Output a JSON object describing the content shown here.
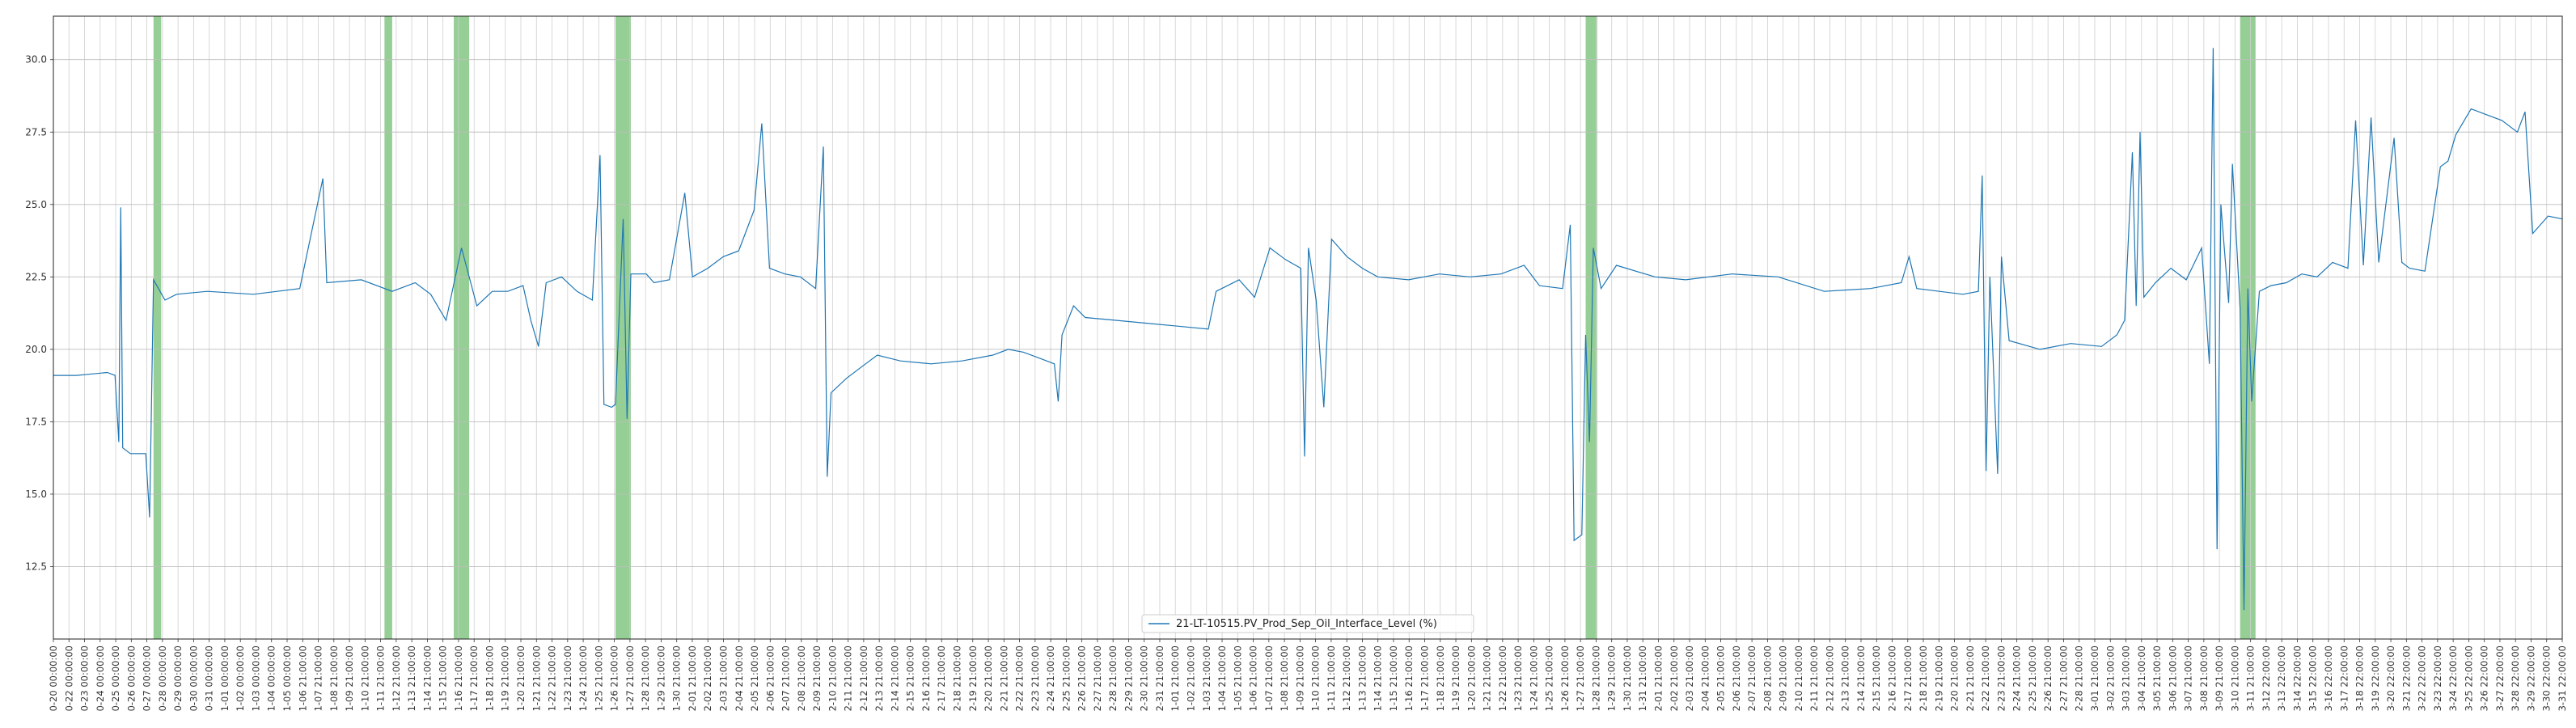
{
  "chart_data": {
    "type": "line",
    "title": "",
    "xlabel": "",
    "ylabel": "",
    "ylim": [
      10,
      31.5
    ],
    "yticks": [
      12.5,
      15.0,
      17.5,
      20.0,
      22.5,
      25.0,
      27.5,
      30.0
    ],
    "grid": true,
    "legend_placement": "bottom-center",
    "line_color": "#1f77b4",
    "highlight_color": "#2ca02c",
    "x_start": "2024-10-20 00:00:00",
    "x_end": "2025-03-31 22:00:00",
    "x_ticks_labels": [
      "0-20 00:00:00",
      "0-22 00:00:00",
      "0-23 00:00:00",
      "0-24 00:00:00",
      "0-25 00:00:00",
      "0-26 00:00:00",
      "0-27 00:00:00",
      "0-28 00:00:00",
      "0-29 00:00:00",
      "0-30 00:00:00",
      "0-31 00:00:00",
      "1-01 00:00:00",
      "1-02 00:00:00",
      "1-03 00:00:00",
      "1-04 00:00:00",
      "1-05 00:00:00",
      "1-06 21:00:00",
      "1-07 21:00:00",
      "1-08 21:00:00",
      "1-09 21:00:00",
      "1-10 21:00:00",
      "1-11 21:00:00",
      "1-12 21:00:00",
      "1-13 21:00:00",
      "1-14 21:00:00",
      "1-15 21:00:00",
      "1-16 21:00:00",
      "1-17 21:00:00",
      "1-18 21:00:00",
      "1-19 21:00:00",
      "1-20 21:00:00",
      "1-21 21:00:00",
      "1-22 21:00:00",
      "1-23 21:00:00",
      "1-24 21:00:00",
      "1-25 21:00:00",
      "1-26 21:00:00",
      "1-27 21:00:00",
      "1-28 21:00:00",
      "1-29 21:00:00",
      "1-30 21:00:00",
      "2-01 21:00:00",
      "2-02 21:00:00",
      "2-03 21:00:00",
      "2-04 21:00:00",
      "2-05 21:00:00",
      "2-06 21:00:00",
      "2-07 21:00:00",
      "2-08 21:00:00",
      "2-09 21:00:00",
      "2-10 21:00:00",
      "2-11 21:00:00",
      "2-12 21:00:00",
      "2-13 21:00:00",
      "2-14 21:00:00",
      "2-15 21:00:00",
      "2-16 21:00:00",
      "2-17 21:00:00",
      "2-18 21:00:00",
      "2-19 21:00:00",
      "2-20 21:00:00",
      "2-21 21:00:00",
      "2-22 21:00:00",
      "2-23 21:00:00",
      "2-24 21:00:00",
      "2-25 21:00:00",
      "2-26 21:00:00",
      "2-27 21:00:00",
      "2-28 21:00:00",
      "2-29 21:00:00",
      "2-30 21:00:00",
      "2-31 21:00:00",
      "1-01 21:00:00",
      "1-02 21:00:00",
      "1-03 21:00:00",
      "1-04 21:00:00",
      "1-05 21:00:00",
      "1-06 21:00:00",
      "1-07 21:00:00",
      "1-08 21:00:00",
      "1-09 21:00:00",
      "1-10 21:00:00",
      "1-11 21:00:00",
      "1-12 21:00:00",
      "1-13 21:00:00",
      "1-14 21:00:00",
      "1-15 21:00:00",
      "1-16 21:00:00",
      "1-17 21:00:00",
      "1-18 21:00:00",
      "1-19 21:00:00",
      "1-20 21:00:00",
      "1-21 21:00:00",
      "1-22 21:00:00",
      "1-23 21:00:00",
      "1-24 21:00:00",
      "1-25 21:00:00",
      "1-26 21:00:00",
      "1-27 21:00:00",
      "1-28 21:00:00",
      "1-29 21:00:00",
      "1-30 21:00:00",
      "1-31 21:00:00",
      "2-01 21:00:00",
      "2-02 21:00:00",
      "2-03 21:00:00",
      "2-04 21:00:00",
      "2-05 21:00:00",
      "2-06 21:00:00",
      "2-07 21:00:00",
      "2-08 21:00:00",
      "2-09 21:00:00",
      "2-10 21:00:00",
      "2-11 21:00:00",
      "2-12 21:00:00",
      "2-13 21:00:00",
      "2-14 21:00:00",
      "2-15 21:00:00",
      "2-16 21:00:00",
      "2-17 21:00:00",
      "2-18 21:00:00",
      "2-19 21:00:00",
      "2-20 21:00:00",
      "2-21 21:00:00",
      "2-22 21:00:00",
      "2-23 21:00:00",
      "2-24 21:00:00",
      "2-25 21:00:00",
      "2-26 21:00:00",
      "2-27 21:00:00",
      "2-28 21:00:00",
      "3-01 21:00:00",
      "3-02 21:00:00",
      "3-03 21:00:00",
      "3-04 21:00:00",
      "3-05 21:00:00",
      "3-06 21:00:00",
      "3-07 21:00:00",
      "3-08 21:00:00",
      "3-09 21:00:00",
      "3-10 21:00:00",
      "3-11 21:00:00",
      "3-12 22:00:00",
      "3-13 22:00:00",
      "3-14 22:00:00",
      "3-15 22:00:00",
      "3-16 22:00:00",
      "3-17 22:00:00",
      "3-18 22:00:00",
      "3-19 22:00:00",
      "3-20 22:00:00",
      "3-21 22:00:00",
      "3-22 22:00:00",
      "3-23 22:00:00",
      "3-24 22:00:00",
      "3-25 22:00:00",
      "3-26 22:00:00",
      "3-27 22:00:00",
      "3-28 22:00:00",
      "3-29 22:00:00",
      "3-30 22:00:00",
      "3-31 22:00:00"
    ],
    "highlight_spans": [
      {
        "start": "2024-10-26 12:00:00",
        "end": "2024-10-27 00:00:00"
      },
      {
        "start": "2024-11-10 12:00:00",
        "end": "2024-11-11 00:00:00"
      },
      {
        "start": "2024-11-15 00:00:00",
        "end": "2024-11-16 00:00:00"
      },
      {
        "start": "2024-11-25 12:00:00",
        "end": "2024-11-26 12:00:00"
      },
      {
        "start": "2025-01-27 12:00:00",
        "end": "2025-01-28 06:00:00"
      },
      {
        "start": "2025-03-11 00:00:00",
        "end": "2025-03-12 00:00:00"
      }
    ],
    "series": [
      {
        "name": "21-LT-10515.PV_Prod_Sep_Oil_Interface_Level (%)",
        "points": [
          [
            "2024-10-20 00:00:00",
            19.1
          ],
          [
            "2024-10-21 12:00:00",
            19.1
          ],
          [
            "2024-10-22 12:00:00",
            19.15
          ],
          [
            "2024-10-23 12:00:00",
            19.2
          ],
          [
            "2024-10-24 00:00:00",
            19.1
          ],
          [
            "2024-10-24 06:00:00",
            16.8
          ],
          [
            "2024-10-24 09:00:00",
            24.9
          ],
          [
            "2024-10-24 12:00:00",
            16.6
          ],
          [
            "2024-10-25 00:00:00",
            16.4
          ],
          [
            "2024-10-26 00:00:00",
            16.4
          ],
          [
            "2024-10-26 06:00:00",
            14.2
          ],
          [
            "2024-10-26 12:00:00",
            22.4
          ],
          [
            "2024-10-27 06:00:00",
            21.7
          ],
          [
            "2024-10-28 00:00:00",
            21.9
          ],
          [
            "2024-10-30 00:00:00",
            22.0
          ],
          [
            "2024-11-02 00:00:00",
            21.9
          ],
          [
            "2024-11-05 00:00:00",
            22.1
          ],
          [
            "2024-11-06 12:00:00",
            25.9
          ],
          [
            "2024-11-06 18:00:00",
            22.3
          ],
          [
            "2024-11-09 00:00:00",
            22.4
          ],
          [
            "2024-11-11 00:00:00",
            22.0
          ],
          [
            "2024-11-12 12:00:00",
            22.3
          ],
          [
            "2024-11-13 12:00:00",
            21.9
          ],
          [
            "2024-11-14 12:00:00",
            21.0
          ],
          [
            "2024-11-15 12:00:00",
            23.5
          ],
          [
            "2024-11-16 12:00:00",
            21.5
          ],
          [
            "2024-11-17 12:00:00",
            22.0
          ],
          [
            "2024-11-18 12:00:00",
            22.0
          ],
          [
            "2024-11-19 12:00:00",
            22.2
          ],
          [
            "2024-11-20 00:00:00",
            21.0
          ],
          [
            "2024-11-20 12:00:00",
            20.1
          ],
          [
            "2024-11-21 00:00:00",
            22.3
          ],
          [
            "2024-11-22 00:00:00",
            22.5
          ],
          [
            "2024-11-23 00:00:00",
            22.0
          ],
          [
            "2024-11-24 00:00:00",
            21.7
          ],
          [
            "2024-11-24 12:00:00",
            26.7
          ],
          [
            "2024-11-24 18:00:00",
            18.1
          ],
          [
            "2024-11-25 06:00:00",
            18.0
          ],
          [
            "2024-11-25 12:00:00",
            18.1
          ],
          [
            "2024-11-26 00:00:00",
            24.5
          ],
          [
            "2024-11-26 06:00:00",
            17.6
          ],
          [
            "2024-11-26 12:00:00",
            22.6
          ],
          [
            "2024-11-27 12:00:00",
            22.6
          ],
          [
            "2024-11-28 00:00:00",
            22.3
          ],
          [
            "2024-11-29 00:00:00",
            22.4
          ],
          [
            "2024-11-30 00:00:00",
            25.4
          ],
          [
            "2024-11-30 12:00:00",
            22.5
          ],
          [
            "2024-12-01 12:00:00",
            22.8
          ],
          [
            "2024-12-02 12:00:00",
            23.2
          ],
          [
            "2024-12-03 12:00:00",
            23.4
          ],
          [
            "2024-12-04 12:00:00",
            24.8
          ],
          [
            "2024-12-05 00:00:00",
            27.8
          ],
          [
            "2024-12-05 12:00:00",
            22.8
          ],
          [
            "2024-12-06 12:00:00",
            22.6
          ],
          [
            "2024-12-07 12:00:00",
            22.5
          ],
          [
            "2024-12-08 12:00:00",
            22.1
          ],
          [
            "2024-12-09 00:00:00",
            27.0
          ],
          [
            "2024-12-09 06:00:00",
            15.6
          ],
          [
            "2024-12-09 12:00:00",
            18.5
          ],
          [
            "2024-12-10 12:00:00",
            19.0
          ],
          [
            "2024-12-11 12:00:00",
            19.4
          ],
          [
            "2024-12-12 12:00:00",
            19.8
          ],
          [
            "2024-12-14 00:00:00",
            19.6
          ],
          [
            "2024-12-16 00:00:00",
            19.5
          ],
          [
            "2024-12-18 00:00:00",
            19.6
          ],
          [
            "2024-12-20 00:00:00",
            19.8
          ],
          [
            "2024-12-21 00:00:00",
            20.0
          ],
          [
            "2024-12-22 00:00:00",
            19.9
          ],
          [
            "2024-12-23 00:00:00",
            19.7
          ],
          [
            "2024-12-24 00:00:00",
            19.5
          ],
          [
            "2024-12-24 06:00:00",
            18.2
          ],
          [
            "2024-12-24 12:00:00",
            20.5
          ],
          [
            "2024-12-25 06:00:00",
            21.5
          ],
          [
            "2024-12-26 00:00:00",
            21.1
          ],
          [
            "2024-12-28 00:00:00",
            21.0
          ],
          [
            "2024-12-30 00:00:00",
            20.9
          ],
          [
            "2025-01-01 00:00:00",
            20.8
          ],
          [
            "2025-01-03 00:00:00",
            20.7
          ],
          [
            "2025-01-03 12:00:00",
            22.0
          ],
          [
            "2025-01-05 00:00:00",
            22.4
          ],
          [
            "2025-01-06 00:00:00",
            21.8
          ],
          [
            "2025-01-07 00:00:00",
            23.5
          ],
          [
            "2025-01-08 00:00:00",
            23.1
          ],
          [
            "2025-01-09 00:00:00",
            22.8
          ],
          [
            "2025-01-09 06:00:00",
            16.3
          ],
          [
            "2025-01-09 12:00:00",
            23.5
          ],
          [
            "2025-01-10 00:00:00",
            21.7
          ],
          [
            "2025-01-10 12:00:00",
            18.0
          ],
          [
            "2025-01-11 00:00:00",
            23.8
          ],
          [
            "2025-01-12 00:00:00",
            23.2
          ],
          [
            "2025-01-13 00:00:00",
            22.8
          ],
          [
            "2025-01-14 00:00:00",
            22.5
          ],
          [
            "2025-01-16 00:00:00",
            22.4
          ],
          [
            "2025-01-18 00:00:00",
            22.6
          ],
          [
            "2025-01-20 00:00:00",
            22.5
          ],
          [
            "2025-01-22 00:00:00",
            22.6
          ],
          [
            "2025-01-23 12:00:00",
            22.9
          ],
          [
            "2025-01-24 12:00:00",
            22.2
          ],
          [
            "2025-01-26 00:00:00",
            22.1
          ],
          [
            "2025-01-26 12:00:00",
            24.3
          ],
          [
            "2025-01-26 18:00:00",
            13.4
          ],
          [
            "2025-01-27 06:00:00",
            13.6
          ],
          [
            "2025-01-27 12:00:00",
            20.5
          ],
          [
            "2025-01-27 18:00:00",
            16.8
          ],
          [
            "2025-01-28 00:00:00",
            23.5
          ],
          [
            "2025-01-28 12:00:00",
            22.1
          ],
          [
            "2025-01-29 12:00:00",
            22.9
          ],
          [
            "2025-02-01 00:00:00",
            22.5
          ],
          [
            "2025-02-03 00:00:00",
            22.4
          ],
          [
            "2025-02-06 00:00:00",
            22.6
          ],
          [
            "2025-02-09 00:00:00",
            22.5
          ],
          [
            "2025-02-12 00:00:00",
            22.0
          ],
          [
            "2025-02-15 00:00:00",
            22.1
          ],
          [
            "2025-02-17 00:00:00",
            22.3
          ],
          [
            "2025-02-17 12:00:00",
            23.2
          ],
          [
            "2025-02-18 00:00:00",
            22.1
          ],
          [
            "2025-02-21 00:00:00",
            21.9
          ],
          [
            "2025-02-22 00:00:00",
            22.0
          ],
          [
            "2025-02-22 06:00:00",
            26.0
          ],
          [
            "2025-02-22 12:00:00",
            15.8
          ],
          [
            "2025-02-22 18:00:00",
            22.5
          ],
          [
            "2025-02-23 06:00:00",
            15.7
          ],
          [
            "2025-02-23 12:00:00",
            23.2
          ],
          [
            "2025-02-24 00:00:00",
            20.3
          ],
          [
            "2025-02-26 00:00:00",
            20.0
          ],
          [
            "2025-02-28 00:00:00",
            20.2
          ],
          [
            "2025-03-02 00:00:00",
            20.1
          ],
          [
            "2025-03-03 00:00:00",
            20.5
          ],
          [
            "2025-03-03 12:00:00",
            21.0
          ],
          [
            "2025-03-04 00:00:00",
            26.8
          ],
          [
            "2025-03-04 06:00:00",
            21.5
          ],
          [
            "2025-03-04 12:00:00",
            27.5
          ],
          [
            "2025-03-04 18:00:00",
            21.8
          ],
          [
            "2025-03-05 12:00:00",
            22.3
          ],
          [
            "2025-03-06 12:00:00",
            22.8
          ],
          [
            "2025-03-07 12:00:00",
            22.4
          ],
          [
            "2025-03-08 12:00:00",
            23.5
          ],
          [
            "2025-03-09 00:00:00",
            19.5
          ],
          [
            "2025-03-09 06:00:00",
            30.4
          ],
          [
            "2025-03-09 12:00:00",
            13.1
          ],
          [
            "2025-03-09 18:00:00",
            25.0
          ],
          [
            "2025-03-10 06:00:00",
            21.6
          ],
          [
            "2025-03-10 12:00:00",
            26.4
          ],
          [
            "2025-03-11 00:00:00",
            21.4
          ],
          [
            "2025-03-11 06:00:00",
            11.0
          ],
          [
            "2025-03-11 12:00:00",
            22.1
          ],
          [
            "2025-03-11 18:00:00",
            18.2
          ],
          [
            "2025-03-12 06:00:00",
            22.0
          ],
          [
            "2025-03-13 00:00:00",
            22.2
          ],
          [
            "2025-03-14 00:00:00",
            22.3
          ],
          [
            "2025-03-15 00:00:00",
            22.6
          ],
          [
            "2025-03-16 00:00:00",
            22.5
          ],
          [
            "2025-03-17 00:00:00",
            23.0
          ],
          [
            "2025-03-18 00:00:00",
            22.8
          ],
          [
            "2025-03-18 12:00:00",
            27.9
          ],
          [
            "2025-03-19 00:00:00",
            22.9
          ],
          [
            "2025-03-19 12:00:00",
            28.0
          ],
          [
            "2025-03-20 00:00:00",
            23.0
          ],
          [
            "2025-03-21 00:00:00",
            27.3
          ],
          [
            "2025-03-21 12:00:00",
            23.0
          ],
          [
            "2025-03-22 00:00:00",
            22.8
          ],
          [
            "2025-03-23 00:00:00",
            22.7
          ],
          [
            "2025-03-24 00:00:00",
            26.3
          ],
          [
            "2025-03-24 12:00:00",
            26.5
          ],
          [
            "2025-03-25 00:00:00",
            27.4
          ],
          [
            "2025-03-26 00:00:00",
            28.3
          ],
          [
            "2025-03-27 00:00:00",
            28.1
          ],
          [
            "2025-03-28 00:00:00",
            27.9
          ],
          [
            "2025-03-29 00:00:00",
            27.5
          ],
          [
            "2025-03-29 12:00:00",
            28.2
          ],
          [
            "2025-03-30 00:00:00",
            24.0
          ],
          [
            "2025-03-30 12:00:00",
            24.3
          ],
          [
            "2025-03-31 00:00:00",
            24.6
          ],
          [
            "2025-03-31 22:00:00",
            24.5
          ]
        ]
      }
    ]
  }
}
